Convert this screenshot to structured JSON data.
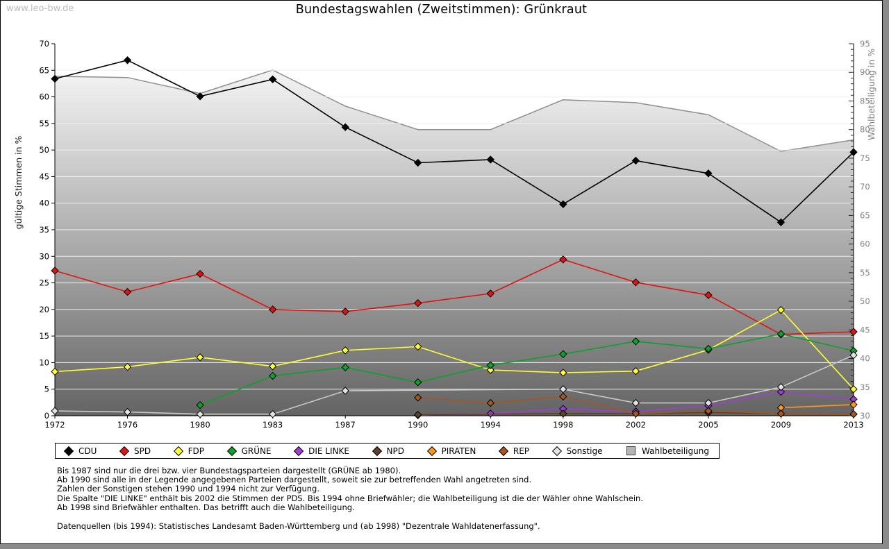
{
  "page": {
    "watermark": "www.leo-bw.de",
    "title": "Bundestagswahlen (Zweitstimmen): Grünkraut"
  },
  "chart_data": {
    "type": "line",
    "title": "Bundestagswahlen (Zweitstimmen): Grünkraut",
    "x_categories": [
      "1972",
      "1976",
      "1980",
      "1983",
      "1987",
      "1990",
      "1994",
      "1998",
      "2002",
      "2005",
      "2009",
      "2013"
    ],
    "left_axis": {
      "label": "gültige Stimmen in %",
      "min": 0,
      "max": 70,
      "step": 5,
      "ticks": [
        "0",
        "5",
        "10",
        "15",
        "20",
        "25",
        "30",
        "35",
        "40",
        "45",
        "50",
        "55",
        "60",
        "65",
        "70"
      ]
    },
    "right_axis": {
      "label": "Wahlbeteiligung in %",
      "min": 30,
      "max": 95,
      "step": 5,
      "ticks": [
        "30",
        "35",
        "40",
        "45",
        "50",
        "55",
        "60",
        "65",
        "70",
        "75",
        "80",
        "85",
        "90",
        "95"
      ]
    },
    "area_series": {
      "name": "Wahlbeteiligung",
      "axis": "right",
      "fill_top": "#ffffff",
      "fill_bottom": "#646464",
      "stroke": "#8f8f8f",
      "values": [
        89.3,
        89.1,
        86.3,
        90.4,
        84.1,
        80.0,
        80.0,
        85.2,
        84.7,
        82.6,
        76.2,
        78.2
      ]
    },
    "series": [
      {
        "name": "CDU",
        "color": "#000000",
        "values": [
          63.4,
          66.9,
          60.1,
          63.3,
          54.3,
          47.6,
          48.2,
          39.8,
          48.0,
          45.6,
          36.4,
          49.6
        ]
      },
      {
        "name": "SPD",
        "color": "#e01313",
        "values": [
          27.3,
          23.3,
          26.7,
          20.0,
          19.6,
          21.2,
          23.0,
          29.4,
          25.1,
          22.7,
          15.3,
          15.8
        ]
      },
      {
        "name": "FDP",
        "color": "#ffff33",
        "values": [
          8.3,
          9.2,
          11.0,
          9.3,
          12.3,
          13.0,
          8.6,
          8.1,
          8.4,
          12.4,
          19.9,
          5.0
        ]
      },
      {
        "name": "GRÜNE",
        "color": "#0aa327",
        "values": [
          null,
          null,
          2.0,
          7.5,
          9.1,
          6.3,
          9.5,
          11.6,
          14.0,
          12.6,
          15.4,
          12.2
        ]
      },
      {
        "name": "DIE LINKE",
        "color": "#a13cd6",
        "values": [
          null,
          null,
          null,
          null,
          null,
          0.1,
          0.4,
          1.3,
          0.8,
          1.9,
          4.5,
          3.1
        ]
      },
      {
        "name": "NPD",
        "color": "#5f4228",
        "values": [
          null,
          null,
          null,
          null,
          null,
          0.2,
          null,
          0.4,
          0.4,
          0.6,
          0.4,
          0.3
        ]
      },
      {
        "name": "PIRATEN",
        "color": "#ff9717",
        "values": [
          null,
          null,
          null,
          null,
          null,
          null,
          null,
          null,
          null,
          null,
          1.5,
          2.1
        ]
      },
      {
        "name": "REP",
        "color": "#a4571f",
        "values": [
          null,
          null,
          null,
          null,
          null,
          3.4,
          2.4,
          3.6,
          0.4,
          0.9,
          0.4,
          0.3
        ]
      },
      {
        "name": "Sonstige",
        "color": "#c9c9c9",
        "marker_fill": "#e3e3e3",
        "values": [
          0.9,
          0.7,
          0.3,
          0.3,
          4.7,
          null,
          null,
          5.0,
          2.4,
          2.4,
          5.4,
          11.4
        ]
      }
    ],
    "legend_position": "bottom",
    "grid": "horizontal"
  },
  "footnotes": {
    "lines": [
      "Bis 1987 sind nur die drei bzw. vier Bundestagsparteien dargestellt (GRÜNE ab 1980).",
      "Ab 1990 sind alle in der Legende angegebenen Parteien dargestellt, soweit sie zur betreffenden Wahl angetreten sind.",
      "Zahlen der Sonstigen stehen 1990 und 1994 nicht zur Verfügung.",
      "Die Spalte \"DIE LINKE\" enthält bis 2002 die Stimmen der PDS. Bis 1994 ohne Briefwähler; die Wahlbeteiligung ist die der Wähler ohne Wahlschein.",
      "Ab 1998 sind Briefwähler enthalten. Das betrifft auch die Wahlbeteiligung."
    ],
    "source": "Datenquellen (bis 1994): Statistisches Landesamt Baden-Württemberg und (ab 1998) \"Dezentrale Wahldatenerfassung\"."
  }
}
